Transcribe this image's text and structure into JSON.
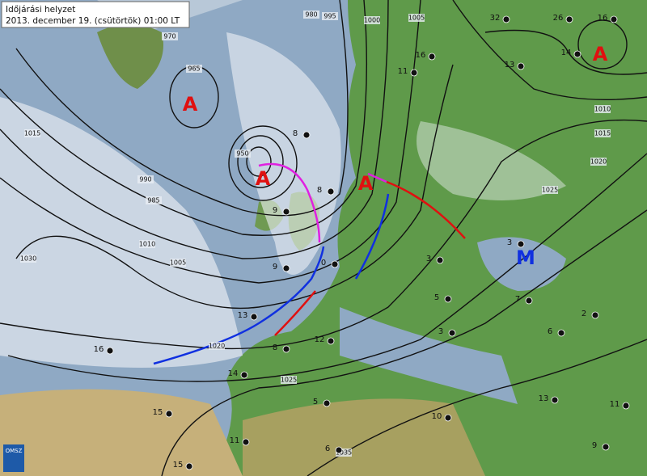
{
  "header": {
    "title": "Időjárási helyzet",
    "subtitle": "2013. december 19. (csütörtök)  01:00 LT"
  },
  "logo": "OMSZ",
  "pressure_centers": [
    "A",
    "A",
    "A",
    "A",
    "M"
  ],
  "isobar_labels": [
    "1015",
    "990",
    "985",
    "1010",
    "1005",
    "1030",
    "965",
    "970",
    "950",
    "1005",
    "1000",
    "995",
    "980",
    "1010",
    "1015",
    "1020",
    "1025",
    "1020",
    "1025",
    "1035"
  ],
  "temperatures": [
    "16",
    "15",
    "15",
    "11",
    "14",
    "13",
    "12",
    "8",
    "9",
    "5",
    "6",
    "10",
    "13",
    "11",
    "9",
    "2",
    "6",
    "7",
    "3",
    "32",
    "26",
    "16",
    "14",
    "13",
    "16",
    "11",
    "8",
    "8",
    "9",
    "0",
    "3",
    "3",
    "5"
  ]
}
